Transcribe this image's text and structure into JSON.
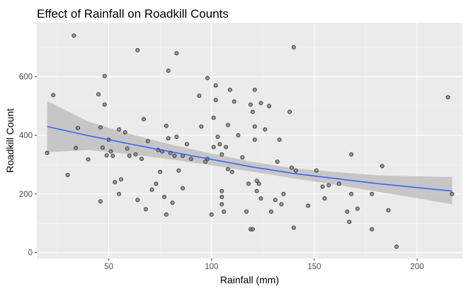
{
  "chart_data": {
    "type": "scatter",
    "title": "Effect of Rainfall on Roadkill Counts",
    "xlabel": "Rainfall (mm)",
    "ylabel": "Roadkill Count",
    "xlim": [
      15,
      222
    ],
    "ylim": [
      -20,
      784
    ],
    "x_ticks": [
      50,
      100,
      150,
      200
    ],
    "y_ticks": [
      0,
      200,
      400,
      600
    ],
    "x_tick_labels": [
      "50",
      "100",
      "150",
      "200"
    ],
    "y_tick_labels": [
      "0",
      "200",
      "400",
      "600"
    ],
    "grid": true,
    "legend": "none",
    "colors": {
      "panel": "#ebebeb",
      "grid_major": "#ffffff",
      "grid_minor": "#f5f5f5",
      "point_fill": "#808080",
      "point_stroke": "#333333",
      "trend_line": "#3366ff",
      "confidence_band": "#bfbfbf"
    },
    "points": [
      [
        20,
        340
      ],
      [
        23,
        537
      ],
      [
        30,
        265
      ],
      [
        33,
        740
      ],
      [
        34,
        357
      ],
      [
        35,
        425
      ],
      [
        40,
        318
      ],
      [
        45,
        540
      ],
      [
        46,
        175
      ],
      [
        46,
        427
      ],
      [
        47,
        358
      ],
      [
        48,
        505
      ],
      [
        48,
        602
      ],
      [
        49,
        332
      ],
      [
        50,
        385
      ],
      [
        51,
        345
      ],
      [
        52,
        330
      ],
      [
        53,
        240
      ],
      [
        55,
        420
      ],
      [
        55,
        200
      ],
      [
        56,
        250
      ],
      [
        58,
        410
      ],
      [
        59,
        355
      ],
      [
        60,
        330
      ],
      [
        63,
        335
      ],
      [
        64,
        690
      ],
      [
        64,
        180
      ],
      [
        66,
        320
      ],
      [
        67,
        455
      ],
      [
        68,
        148
      ],
      [
        69,
        380
      ],
      [
        71,
        215
      ],
      [
        73,
        235
      ],
      [
        74,
        350
      ],
      [
        75,
        275
      ],
      [
        76,
        345
      ],
      [
        77,
        190
      ],
      [
        78,
        130
      ],
      [
        78,
        432
      ],
      [
        79,
        620
      ],
      [
        79,
        390
      ],
      [
        80,
        340
      ],
      [
        81,
        170
      ],
      [
        82,
        330
      ],
      [
        83,
        680
      ],
      [
        83,
        395
      ],
      [
        84,
        280
      ],
      [
        86,
        220
      ],
      [
        86,
        330
      ],
      [
        88,
        370
      ],
      [
        90,
        320
      ],
      [
        94,
        535
      ],
      [
        95,
        430
      ],
      [
        97,
        310
      ],
      [
        98,
        320
      ],
      [
        98,
        595
      ],
      [
        100,
        130
      ],
      [
        101,
        360
      ],
      [
        101,
        460
      ],
      [
        102,
        570
      ],
      [
        102,
        520
      ],
      [
        103,
        395
      ],
      [
        104,
        370
      ],
      [
        105,
        335
      ],
      [
        105,
        190
      ],
      [
        105,
        210
      ],
      [
        105,
        165
      ],
      [
        106,
        140
      ],
      [
        107,
        360
      ],
      [
        108,
        285
      ],
      [
        108,
        435
      ],
      [
        109,
        555
      ],
      [
        110,
        275
      ],
      [
        111,
        515
      ],
      [
        113,
        400
      ],
      [
        115,
        325
      ],
      [
        117,
        140
      ],
      [
        118,
        235
      ],
      [
        119,
        505
      ],
      [
        119,
        80
      ],
      [
        120,
        80
      ],
      [
        120,
        480
      ],
      [
        121,
        555
      ],
      [
        121,
        430
      ],
      [
        121,
        385
      ],
      [
        122,
        210
      ],
      [
        122,
        245
      ],
      [
        123,
        235
      ],
      [
        124,
        510
      ],
      [
        124,
        185
      ],
      [
        126,
        420
      ],
      [
        128,
        500
      ],
      [
        129,
        140
      ],
      [
        131,
        180
      ],
      [
        132,
        310
      ],
      [
        133,
        385
      ],
      [
        134,
        165
      ],
      [
        135,
        200
      ],
      [
        138,
        480
      ],
      [
        139,
        290
      ],
      [
        140,
        700
      ],
      [
        140,
        85
      ],
      [
        141,
        280
      ],
      [
        147,
        160
      ],
      [
        151,
        280
      ],
      [
        154,
        225
      ],
      [
        155,
        185
      ],
      [
        157,
        230
      ],
      [
        162,
        235
      ],
      [
        166,
        140
      ],
      [
        167,
        105
      ],
      [
        168,
        200
      ],
      [
        168,
        335
      ],
      [
        171,
        150
      ],
      [
        178,
        80
      ],
      [
        178,
        200
      ],
      [
        183,
        295
      ],
      [
        186,
        145
      ],
      [
        190,
        20
      ],
      [
        215,
        530
      ],
      [
        217,
        200
      ]
    ],
    "trend": {
      "x": [
        20,
        40,
        60,
        80,
        100,
        120,
        140,
        160,
        180,
        200,
        217
      ],
      "y": [
        430,
        399,
        371,
        344,
        318,
        292,
        270,
        253,
        236,
        222,
        210
      ],
      "lower": [
        343,
        350,
        336,
        318,
        298,
        276,
        253,
        232,
        209,
        186,
        165
      ],
      "upper": [
        517,
        447,
        405,
        369,
        338,
        309,
        287,
        275,
        264,
        260,
        258
      ]
    }
  }
}
